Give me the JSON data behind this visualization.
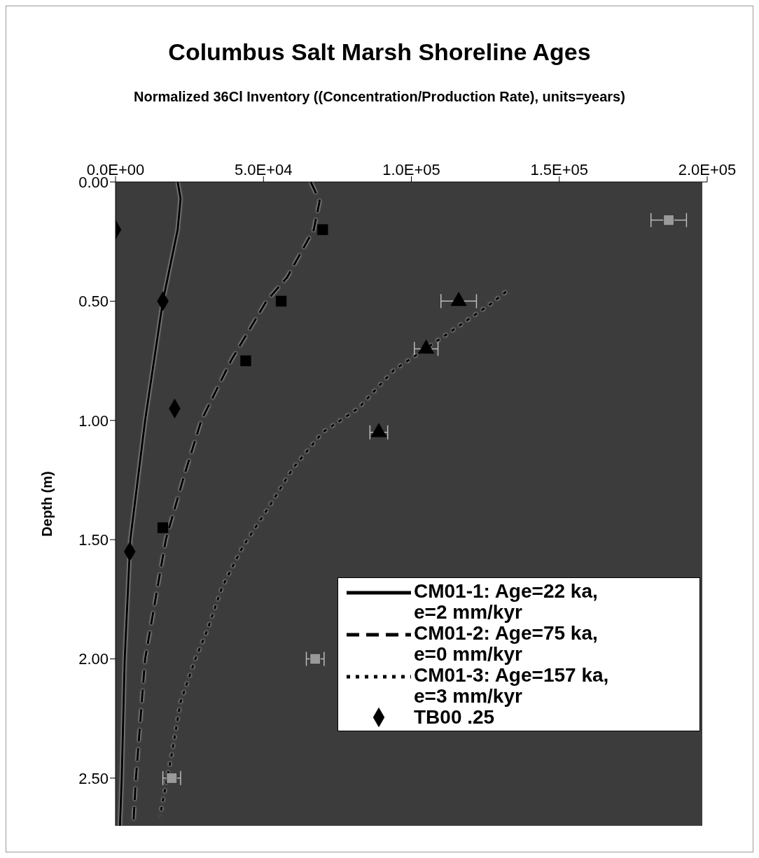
{
  "chart_data": {
    "type": "scatter",
    "title": "Columbus Salt Marsh Shoreline Ages",
    "xlabel": "Normalized 36Cl Inventory ((Concentration/Production Rate), units=years)",
    "ylabel": "Depth (m)",
    "xlim": [
      0,
      200000
    ],
    "xticks": [
      {
        "value": 0,
        "label": "0.0E+00"
      },
      {
        "value": 50000,
        "label": "5.0E+04"
      },
      {
        "value": 100000,
        "label": "1.0E+05"
      },
      {
        "value": 150000,
        "label": "1.5E+05"
      },
      {
        "value": 200000,
        "label": "2.0E+05"
      }
    ],
    "ylim": [
      2.7,
      0
    ],
    "yticks": [
      {
        "value": 0,
        "label": "0.00"
      },
      {
        "value": 0.5,
        "label": "0.50"
      },
      {
        "value": 1,
        "label": "1.00"
      },
      {
        "value": 1.5,
        "label": "1.50"
      },
      {
        "value": 2,
        "label": "2.00"
      },
      {
        "value": 2.5,
        "label": "2.50"
      }
    ],
    "legend": "bottom right",
    "grid": false,
    "series": [
      {
        "name": "CM01-1: Age=22 ka, e=2 mm/kyr",
        "type": "line",
        "line_style": "solid",
        "marker": "none",
        "color": "#000000",
        "x": [
          21000,
          22000,
          21000,
          16000,
          10000,
          5000,
          3100,
          2100,
          1500
        ],
        "values": [
          0,
          0.07,
          0.2,
          0.5,
          1.0,
          1.5,
          2.0,
          2.5,
          2.7
        ]
      },
      {
        "name": "CM01-2: Age=75 ka, e=0 mm/kyr",
        "type": "line",
        "line_style": "dashed",
        "marker": "none",
        "color": "#000000",
        "x": [
          66000,
          69000,
          67000,
          58000,
          51000,
          39000,
          29000,
          23000,
          17000,
          10000,
          6900,
          6000
        ],
        "values": [
          0,
          0.08,
          0.2,
          0.4,
          0.5,
          0.75,
          1.0,
          1.24,
          1.5,
          2.0,
          2.5,
          2.7
        ]
      },
      {
        "name": "CM01-3: Age=157 ka, e=3 mm/kyr",
        "type": "line",
        "line_style": "dotted",
        "marker": "none",
        "color": "#000000",
        "x": [
          132000,
          127000,
          120000,
          113000,
          94000,
          82000,
          70000,
          60000,
          52000,
          43000,
          36000,
          31000,
          27000,
          22000,
          19000,
          15000
        ],
        "values": [
          0.46,
          0.51,
          0.57,
          0.63,
          0.79,
          0.95,
          1.05,
          1.2,
          1.36,
          1.53,
          1.7,
          1.88,
          2.0,
          2.18,
          2.4,
          2.66
        ]
      },
      {
        "name": "TB00 .25",
        "marker": "diamond",
        "color": "#000000",
        "x": [
          0,
          16000,
          20000,
          4800
        ],
        "values": [
          0.2,
          0.5,
          0.95,
          1.55
        ]
      },
      {
        "marker": "square",
        "color": "#000000",
        "x": [
          70000,
          56000,
          44000,
          16000
        ],
        "values": [
          0.2,
          0.5,
          0.75,
          1.45
        ]
      },
      {
        "marker": "triangle",
        "color": "#000000",
        "x": [
          116000,
          105000,
          89000
        ],
        "values": [
          0.5,
          0.7,
          1.05
        ],
        "xerrors": [
          6000,
          4000,
          3000
        ]
      },
      {
        "marker": "square",
        "color": "#9a9a9a",
        "x": [
          187000,
          67500,
          19000
        ],
        "values": [
          0.16,
          2.0,
          2.5
        ],
        "xerrors": [
          6000,
          3000,
          3000
        ]
      }
    ]
  }
}
